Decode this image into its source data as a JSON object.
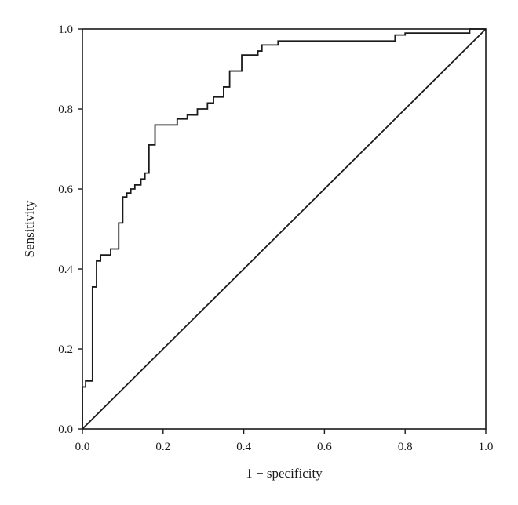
{
  "chart_data": {
    "type": "line",
    "title": "",
    "xlabel": "1 − specificity",
    "ylabel": "Sensitivity",
    "xlim": [
      0.0,
      1.0
    ],
    "ylim": [
      0.0,
      1.0
    ],
    "xticks": [
      "0.0",
      "0.2",
      "0.4",
      "0.6",
      "0.8",
      "1.0"
    ],
    "yticks": [
      "0.0",
      "0.2",
      "0.4",
      "0.6",
      "0.8",
      "1.0"
    ],
    "grid": false,
    "legend": "none",
    "series": [
      {
        "style": "step",
        "color": "#1a1a1a",
        "x": [
          0.0,
          0.0,
          0.008,
          0.008,
          0.025,
          0.025,
          0.035,
          0.035,
          0.045,
          0.045,
          0.07,
          0.07,
          0.09,
          0.09,
          0.1,
          0.1,
          0.11,
          0.11,
          0.12,
          0.12,
          0.13,
          0.13,
          0.145,
          0.145,
          0.155,
          0.155,
          0.165,
          0.165,
          0.18,
          0.18,
          0.235,
          0.235,
          0.26,
          0.26,
          0.285,
          0.285,
          0.31,
          0.31,
          0.325,
          0.325,
          0.35,
          0.35,
          0.365,
          0.365,
          0.395,
          0.395,
          0.435,
          0.435,
          0.445,
          0.445,
          0.485,
          0.485,
          0.775,
          0.775,
          0.8,
          0.8,
          0.96,
          0.96,
          1.0
        ],
        "y": [
          0.0,
          0.105,
          0.105,
          0.12,
          0.12,
          0.355,
          0.355,
          0.42,
          0.42,
          0.435,
          0.435,
          0.45,
          0.45,
          0.515,
          0.515,
          0.58,
          0.58,
          0.59,
          0.59,
          0.6,
          0.6,
          0.61,
          0.61,
          0.625,
          0.625,
          0.64,
          0.64,
          0.71,
          0.71,
          0.76,
          0.76,
          0.775,
          0.775,
          0.785,
          0.785,
          0.8,
          0.8,
          0.815,
          0.815,
          0.83,
          0.83,
          0.855,
          0.855,
          0.895,
          0.895,
          0.935,
          0.935,
          0.945,
          0.945,
          0.96,
          0.96,
          0.97,
          0.97,
          0.985,
          0.985,
          0.99,
          0.99,
          1.0,
          1.0
        ]
      },
      {
        "style": "diagonal",
        "color": "#1a1a1a",
        "x": [
          0.0,
          1.0
        ],
        "y": [
          0.0,
          1.0
        ]
      }
    ]
  }
}
